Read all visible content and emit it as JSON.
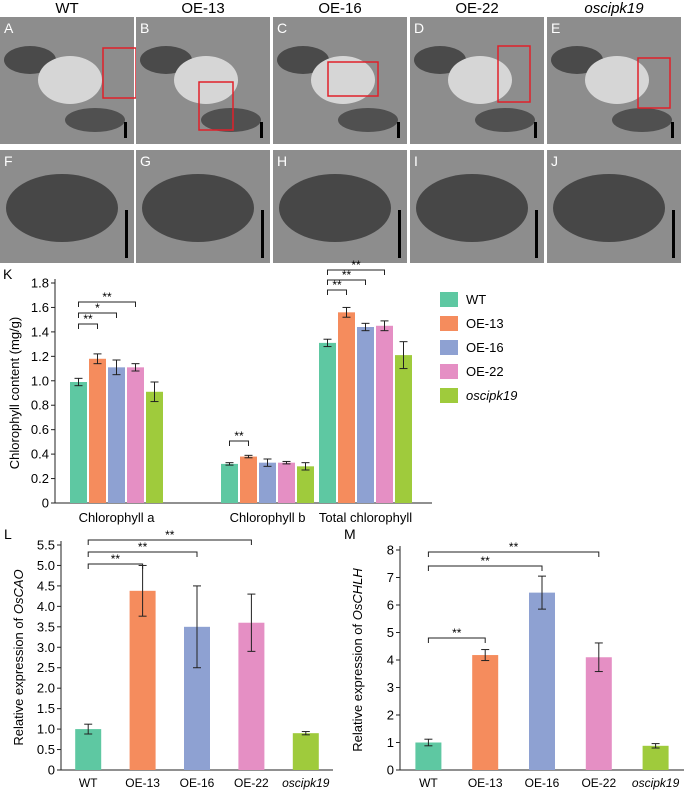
{
  "tem_row1": [
    {
      "letter": "A",
      "title": "WT",
      "italic": false
    },
    {
      "letter": "B",
      "title": "OE-13",
      "italic": false
    },
    {
      "letter": "C",
      "title": "OE-16",
      "italic": false
    },
    {
      "letter": "D",
      "title": "OE-22",
      "italic": false
    },
    {
      "letter": "E",
      "title": "oscipk19",
      "italic": true
    }
  ],
  "tem_row2": [
    {
      "letter": "F"
    },
    {
      "letter": "G"
    },
    {
      "letter": "H"
    },
    {
      "letter": "I"
    },
    {
      "letter": "J"
    }
  ],
  "colors": {
    "WT": "#5ec8a2",
    "OE-13": "#f58c5d",
    "OE-16": "#8ea1d2",
    "OE-22": "#e58fc4",
    "oscipk19": "#9fcb3c"
  },
  "chart_data": [
    {
      "panel": "K",
      "type": "bar",
      "ylabel": "Chlorophyll content  (mg/g)",
      "ylim": [
        0,
        1.8
      ],
      "yticks": [
        "0",
        "0.2",
        "0.4",
        "0.6",
        "0.8",
        "1.0",
        "1.2",
        "1.4",
        "1.6",
        "1.8"
      ],
      "categories": [
        "Chlorophyll a",
        "Chlorophyll b",
        "Total chlorophyll"
      ],
      "legend_position": "right",
      "series": [
        {
          "name": "WT",
          "italic": false,
          "values": [
            0.99,
            0.32,
            1.31
          ],
          "errors": [
            0.03,
            0.01,
            0.03
          ]
        },
        {
          "name": "OE-13",
          "italic": false,
          "values": [
            1.18,
            0.38,
            1.56
          ],
          "errors": [
            0.04,
            0.01,
            0.04
          ]
        },
        {
          "name": "OE-16",
          "italic": false,
          "values": [
            1.11,
            0.33,
            1.44
          ],
          "errors": [
            0.06,
            0.03,
            0.03
          ]
        },
        {
          "name": "OE-22",
          "italic": false,
          "values": [
            1.11,
            0.33,
            1.45
          ],
          "errors": [
            0.03,
            0.01,
            0.04
          ]
        },
        {
          "name": "oscipk19",
          "italic": true,
          "values": [
            0.91,
            0.3,
            1.21
          ],
          "errors": [
            0.08,
            0.03,
            0.11
          ]
        }
      ],
      "significance": [
        {
          "category": 0,
          "from": 0,
          "to": 1,
          "label": "**"
        },
        {
          "category": 0,
          "from": 0,
          "to": 2,
          "label": "*"
        },
        {
          "category": 0,
          "from": 0,
          "to": 3,
          "label": "**"
        },
        {
          "category": 1,
          "from": 0,
          "to": 1,
          "label": "**"
        },
        {
          "category": 2,
          "from": 0,
          "to": 1,
          "label": "**"
        },
        {
          "category": 2,
          "from": 0,
          "to": 2,
          "label": "**"
        },
        {
          "category": 2,
          "from": 0,
          "to": 3,
          "label": "**"
        }
      ]
    },
    {
      "panel": "L",
      "type": "bar",
      "ylabel_prefix": "Relative expression of ",
      "ylabel_gene": "OsCAO",
      "ylim": [
        0,
        5.5
      ],
      "yticks": [
        "0",
        "0.5",
        "1.0",
        "1.5",
        "2.0",
        "2.5",
        "3.0",
        "3.5",
        "4.0",
        "4.5",
        "5.0",
        "5.5"
      ],
      "categories": [
        "WT",
        "OE-13",
        "OE-16",
        "OE-22",
        "oscipk19"
      ],
      "values": [
        1.0,
        4.38,
        3.5,
        3.6,
        0.9
      ],
      "errors": [
        0.12,
        0.62,
        1.0,
        0.7,
        0.04
      ],
      "significance": [
        {
          "from": 0,
          "to": 1,
          "label": "**"
        },
        {
          "from": 0,
          "to": 2,
          "label": "**"
        },
        {
          "from": 0,
          "to": 3,
          "label": "**"
        }
      ]
    },
    {
      "panel": "M",
      "type": "bar",
      "ylabel_prefix": "Relative expression of ",
      "ylabel_gene": "OsCHLH",
      "ylim": [
        0,
        8
      ],
      "yticks": [
        "0",
        "1",
        "2",
        "3",
        "4",
        "5",
        "6",
        "7",
        "8"
      ],
      "categories": [
        "WT",
        "OE-13",
        "OE-16",
        "OE-22",
        "oscipk19"
      ],
      "values": [
        1.0,
        4.18,
        6.45,
        4.1,
        0.88
      ],
      "errors": [
        0.12,
        0.2,
        0.6,
        0.52,
        0.08
      ],
      "significance": [
        {
          "from": 0,
          "to": 1,
          "label": "**"
        },
        {
          "from": 0,
          "to": 2,
          "label": "**"
        },
        {
          "from": 0,
          "to": 3,
          "label": "**"
        }
      ]
    }
  ]
}
